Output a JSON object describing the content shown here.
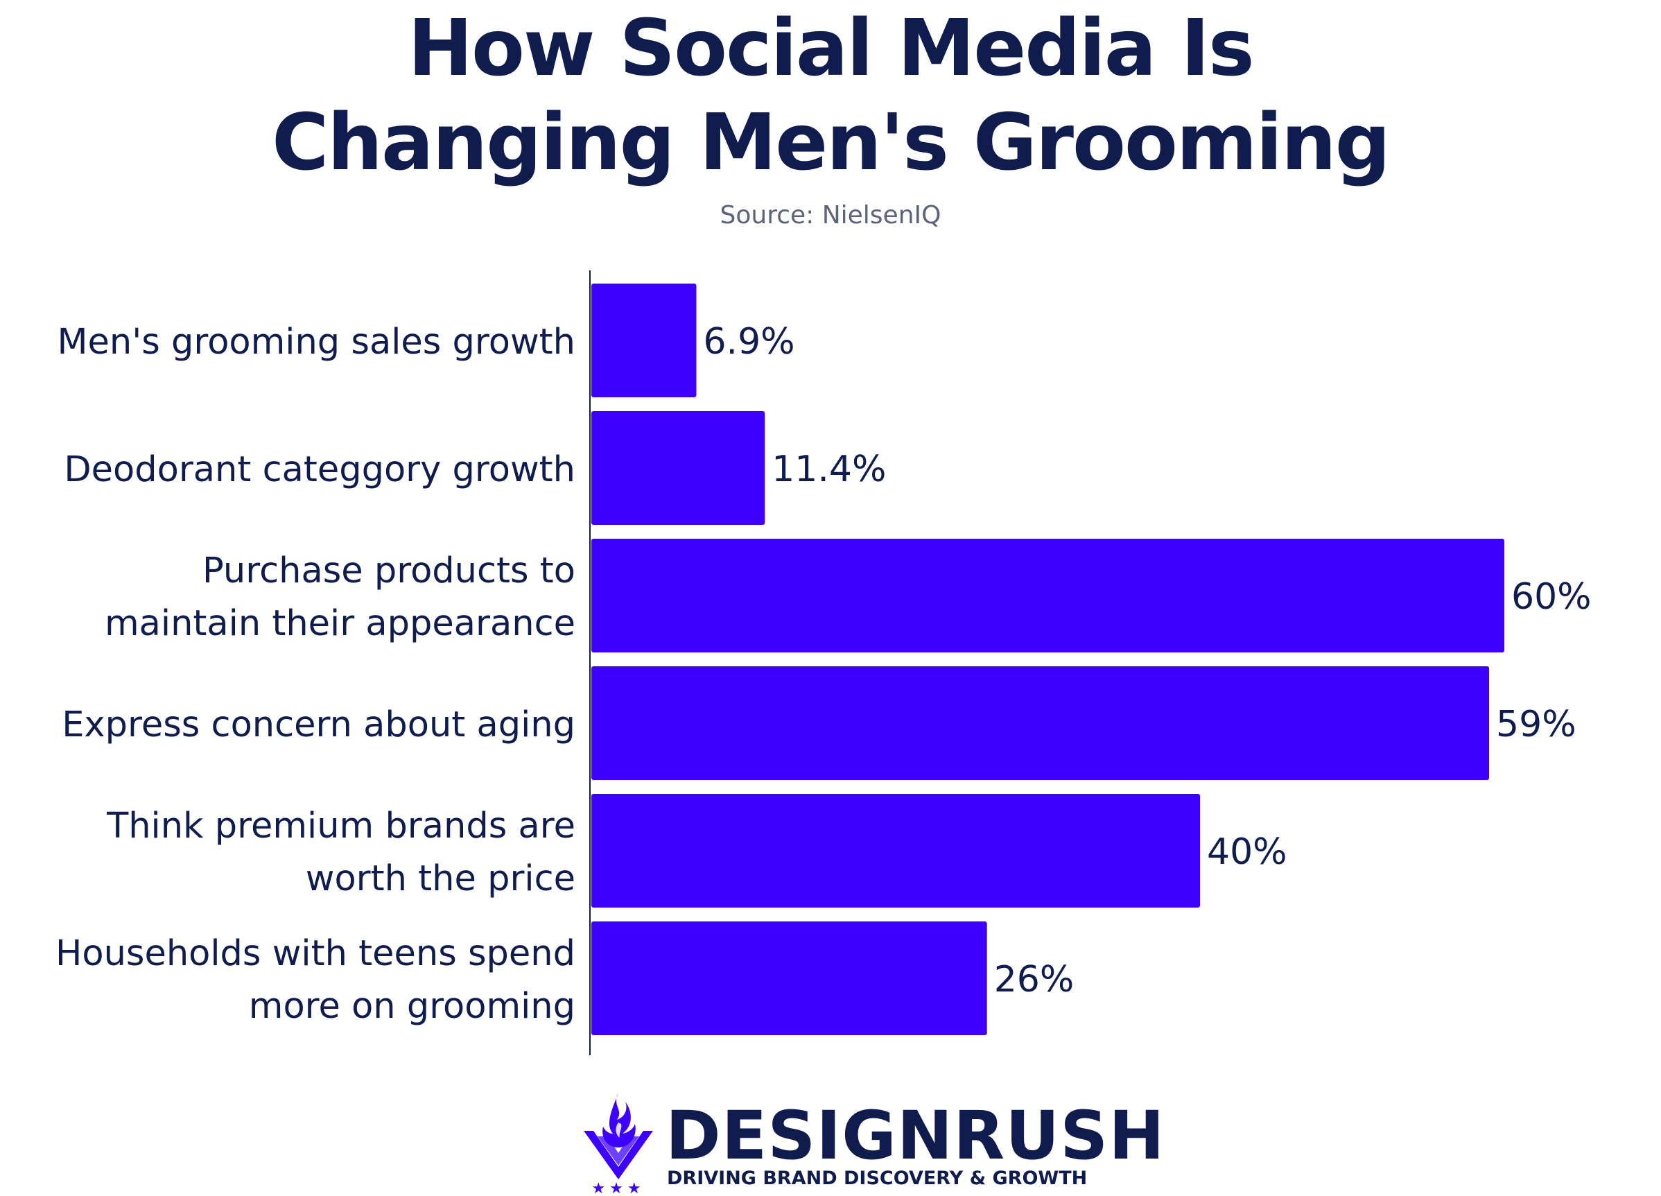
{
  "header": {
    "title_line1": "How Social Media Is",
    "title_line2": "Changing Men's Grooming",
    "source": "Source: NielsenIQ"
  },
  "chart_data": {
    "type": "bar",
    "orientation": "horizontal",
    "categories": [
      [
        "Men's grooming sales growth"
      ],
      [
        "Deodorant categgory growth"
      ],
      [
        "Purchase products to",
        "maintain their appearance"
      ],
      [
        "Express concern about aging"
      ],
      [
        "Think premium brands are",
        "worth the price"
      ],
      [
        "Households with teens spend",
        "more on grooming"
      ]
    ],
    "values": [
      6.9,
      11.4,
      60,
      59,
      40,
      26
    ],
    "data_labels": [
      "6.9%",
      "11.4%",
      "60%",
      "59%",
      "40%",
      "26%"
    ],
    "xlim": [
      0,
      60
    ],
    "bar_color": "#3d00ff",
    "grid": false
  },
  "branding": {
    "name": "DESIGNRUSH",
    "tagline": "DRIVING BRAND DISCOVERY & GROWTH",
    "logo": "flame-shield-icon",
    "stars": "★★★",
    "accent": "#3d00ff",
    "text_color": "#0f1c4d"
  }
}
